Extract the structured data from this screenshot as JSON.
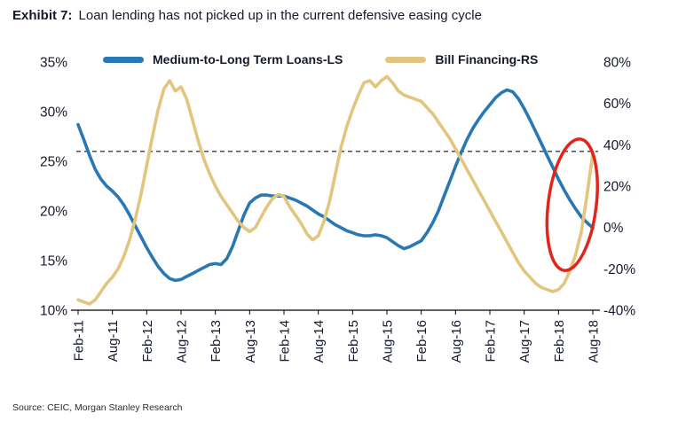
{
  "header": {
    "exhibit_label": "Exhibit 7:",
    "title": "Loan lending has not picked up in the current defensive easing cycle"
  },
  "footer": {
    "source": "Source: CEIC, Morgan Stanley Research"
  },
  "chart_data": {
    "type": "line",
    "title": "Loan lending has not picked up in the current defensive easing cycle",
    "x_axis": {
      "start": "Feb-11",
      "interval": "monthly",
      "tick_month_indices": [
        0,
        6,
        12,
        18,
        24,
        30,
        36,
        42,
        48,
        54,
        60,
        66,
        72,
        78,
        84,
        90
      ],
      "tick_labels": [
        "Feb-11",
        "Aug-11",
        "Feb-12",
        "Aug-12",
        "Feb-13",
        "Aug-13",
        "Feb-14",
        "Aug-14",
        "Feb-15",
        "Aug-15",
        "Feb-16",
        "Aug-16",
        "Feb-17",
        "Aug-17",
        "Feb-18",
        "Aug-18"
      ]
    },
    "left_axis": {
      "min": 10,
      "max": 35,
      "tick_values": [
        35,
        30,
        25,
        20,
        15,
        10
      ],
      "tick_labels": [
        "35%",
        "30%",
        "25%",
        "20%",
        "15%",
        "10%"
      ]
    },
    "right_axis": {
      "min": -40,
      "max": 80,
      "tick_values": [
        80,
        60,
        40,
        20,
        0,
        -20,
        -40
      ],
      "tick_labels": [
        "80%",
        "60%",
        "40%",
        "20%",
        "0%",
        "-20%",
        "-40%"
      ]
    },
    "reference_line": {
      "axis": "left",
      "value": 26,
      "style": "dashed",
      "color": "#111111"
    },
    "series": [
      {
        "name": "Medium-to-Long Term Loans-LS",
        "axis": "left",
        "color": "#2878b5",
        "values": [
          28.7,
          27.2,
          25.6,
          24.2,
          23.2,
          22.5,
          22.0,
          21.4,
          20.6,
          19.6,
          18.5,
          17.4,
          16.3,
          15.3,
          14.4,
          13.7,
          13.2,
          13.0,
          13.1,
          13.4,
          13.7,
          14.0,
          14.3,
          14.6,
          14.7,
          14.6,
          15.2,
          16.4,
          18.0,
          19.6,
          20.8,
          21.3,
          21.6,
          21.6,
          21.5,
          21.5,
          21.5,
          21.3,
          21.1,
          20.8,
          20.5,
          20.1,
          19.7,
          19.4,
          19.0,
          18.6,
          18.3,
          18.0,
          17.8,
          17.6,
          17.5,
          17.5,
          17.6,
          17.5,
          17.3,
          16.9,
          16.5,
          16.2,
          16.4,
          16.7,
          17.0,
          17.8,
          18.8,
          20.0,
          21.5,
          23.0,
          24.5,
          25.9,
          27.2,
          28.3,
          29.2,
          30.0,
          30.7,
          31.4,
          31.9,
          32.2,
          32.0,
          31.3,
          30.3,
          29.2,
          28.0,
          26.8,
          25.6,
          24.4,
          23.2,
          22.1,
          21.1,
          20.2,
          19.4,
          18.8,
          18.3
        ]
      },
      {
        "name": "Bill Financing-RS",
        "axis": "right",
        "color": "#e2c57e",
        "values": [
          -35,
          -36,
          -37,
          -35,
          -31,
          -27,
          -24,
          -20,
          -14,
          -6,
          4,
          16,
          30,
          44,
          57,
          67,
          71,
          66,
          68,
          62,
          52,
          42,
          33,
          26,
          20,
          15,
          11,
          7,
          3,
          0,
          -2,
          0,
          5,
          10,
          14,
          16,
          15,
          10,
          6,
          2,
          -3,
          -6,
          -4,
          3,
          13,
          26,
          39,
          49,
          57,
          64,
          70,
          71,
          68,
          71,
          73,
          70,
          66,
          64,
          63,
          62,
          61,
          58,
          55,
          51,
          47,
          43,
          38,
          33,
          28,
          23,
          18,
          13,
          8,
          3,
          -2,
          -7,
          -12,
          -17,
          -21,
          -24,
          -27,
          -29,
          -30,
          -31,
          -30,
          -27,
          -21,
          -13,
          -2,
          16,
          36
        ]
      }
    ],
    "annotation": {
      "shape": "ellipse",
      "color": "#e1251b",
      "center_month_index": 86.4,
      "center_value_right_axis": 11,
      "radius_months": 4.2,
      "radius_value_right_axis": 32,
      "rotation_deg": 7
    },
    "legend_position": "top",
    "grid": false
  }
}
